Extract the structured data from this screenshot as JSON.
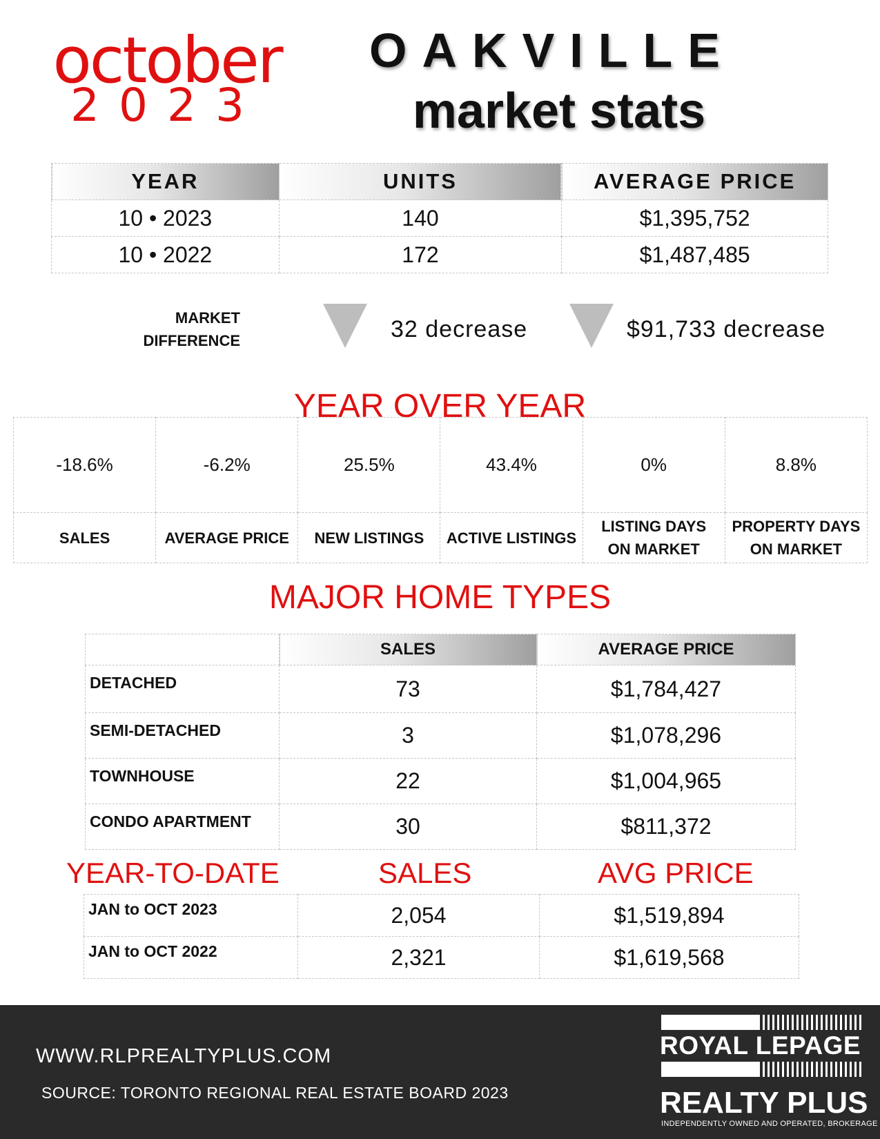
{
  "header": {
    "month": "october",
    "year": "2023",
    "city": "OAKVILLE",
    "subtitle": "market stats"
  },
  "summary": {
    "headers": [
      "YEAR",
      "UNITS",
      "AVERAGE PRICE"
    ],
    "rows": [
      {
        "year": "10 • 2023",
        "units": "140",
        "avg_price": "$1,395,752"
      },
      {
        "year": "10 • 2022",
        "units": "172",
        "avg_price": "$1,487,485"
      }
    ]
  },
  "market_difference": {
    "label_line1": "MARKET",
    "label_line2": "DIFFERENCE",
    "units_change": "32 decrease",
    "price_change": "$91,733 decrease"
  },
  "year_over_year": {
    "title": "YEAR OVER YEAR",
    "items": [
      {
        "value": "-18.6%",
        "label": "SALES"
      },
      {
        "value": "-6.2%",
        "label": "AVERAGE PRICE"
      },
      {
        "value": "25.5%",
        "label": "NEW LISTINGS"
      },
      {
        "value": "43.4%",
        "label": "ACTIVE LISTINGS"
      },
      {
        "value": "0%",
        "label_line1": "LISTING DAYS",
        "label_line2": "ON MARKET"
      },
      {
        "value": "8.8%",
        "label_line1": "PROPERTY DAYS",
        "label_line2": "ON MARKET"
      }
    ]
  },
  "home_types": {
    "title": "MAJOR HOME TYPES",
    "headers": [
      "SALES",
      "AVERAGE PRICE"
    ],
    "rows": [
      {
        "type": "DETACHED",
        "sales": "73",
        "avg_price": "$1,784,427"
      },
      {
        "type": "SEMI-DETACHED",
        "sales": "3",
        "avg_price": "$1,078,296"
      },
      {
        "type": "TOWNHOUSE",
        "sales": "22",
        "avg_price": "$1,004,965"
      },
      {
        "type": "CONDO APARTMENT",
        "sales": "30",
        "avg_price": "$811,372"
      }
    ]
  },
  "ytd": {
    "title": "YEAR-TO-DATE",
    "sales_header": "SALES",
    "price_header": "AVG PRICE",
    "rows": [
      {
        "period": "JAN to OCT 2023",
        "sales": "2,054",
        "avg_price": "$1,519,894"
      },
      {
        "period": "JAN to OCT 2022",
        "sales": "2,321",
        "avg_price": "$1,619,568"
      }
    ]
  },
  "footer": {
    "url": "WWW.RLPREALTYPLUS.COM",
    "source": "SOURCE: TORONTO REGIONAL REAL ESTATE BOARD 2023",
    "logo_line1": "ROYAL LEPAGE",
    "logo_line2": "REALTY PLUS",
    "logo_tagline": "INDEPENDENTLY OWNED AND OPERATED, BROKERAGE"
  },
  "colors": {
    "accent_red": "#e01010",
    "footer_bg": "#2a2a2a"
  }
}
